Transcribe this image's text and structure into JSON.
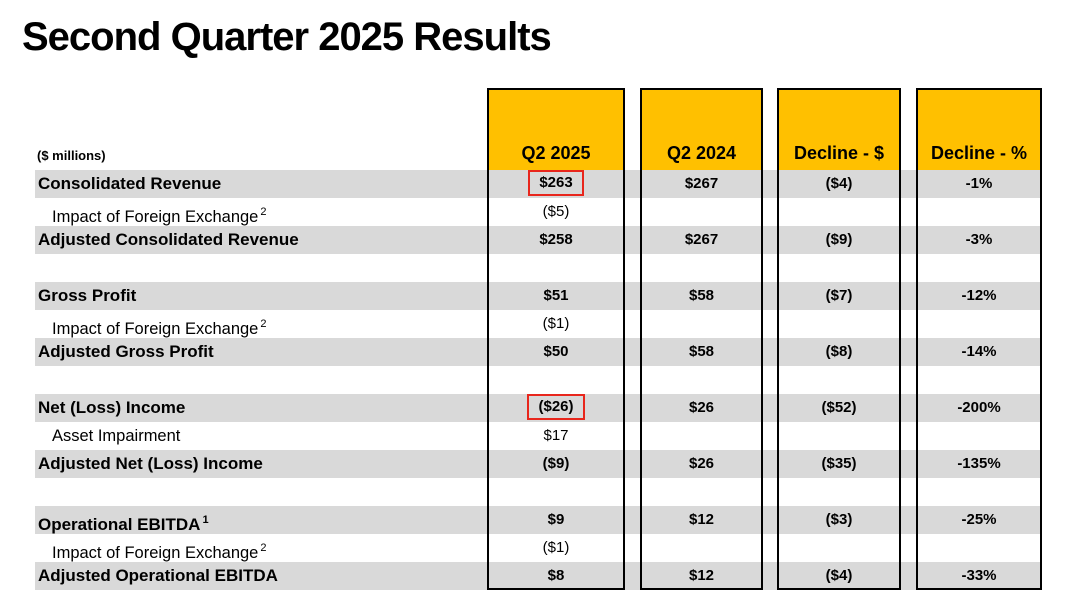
{
  "title": "Second Quarter 2025 Results",
  "table": {
    "unit_label": "($ millions)",
    "columns": [
      "Q2 2025",
      "Q2 2024",
      "Decline - $",
      "Decline - %"
    ],
    "colors": {
      "header_fill": "#FFC000",
      "row_shade": "#D9D9D9",
      "border": "#000000",
      "highlight_border": "#E8261C"
    },
    "rows": [
      {
        "label": "Consolidated Revenue",
        "style": "bold-shaded",
        "values": [
          "$263",
          "$267",
          "($4)",
          "-1%"
        ],
        "highlight_col": 0
      },
      {
        "label": "Impact of Foreign Exchange",
        "sup": "2",
        "style": "indent",
        "values": [
          "($5)",
          "",
          "",
          ""
        ]
      },
      {
        "label": "Adjusted Consolidated Revenue",
        "style": "bold-shaded",
        "values": [
          "$258",
          "$267",
          "($9)",
          "-3%"
        ]
      },
      {
        "label": "",
        "style": "blank",
        "values": [
          "",
          "",
          "",
          ""
        ]
      },
      {
        "label": "Gross Profit",
        "style": "bold-shaded",
        "values": [
          "$51",
          "$58",
          "($7)",
          "-12%"
        ]
      },
      {
        "label": "Impact of Foreign Exchange",
        "sup": "2",
        "style": "indent",
        "values": [
          "($1)",
          "",
          "",
          ""
        ]
      },
      {
        "label": "Adjusted Gross Profit",
        "style": "bold-shaded",
        "values": [
          "$50",
          "$58",
          "($8)",
          "-14%"
        ]
      },
      {
        "label": "",
        "style": "blank",
        "values": [
          "",
          "",
          "",
          ""
        ]
      },
      {
        "label": "Net (Loss) Income",
        "style": "bold-shaded",
        "values": [
          "($26)",
          "$26",
          "($52)",
          "-200%"
        ],
        "highlight_col": 0
      },
      {
        "label": "Asset Impairment",
        "style": "indent",
        "values": [
          "$17",
          "",
          "",
          ""
        ]
      },
      {
        "label": "Adjusted Net (Loss) Income",
        "style": "bold-shaded",
        "values": [
          "($9)",
          "$26",
          "($35)",
          "-135%"
        ]
      },
      {
        "label": "",
        "style": "blank",
        "values": [
          "",
          "",
          "",
          ""
        ]
      },
      {
        "label": "Operational EBITDA",
        "sup": "1",
        "style": "bold-shaded",
        "values": [
          "$9",
          "$12",
          "($3)",
          "-25%"
        ]
      },
      {
        "label": "Impact of Foreign Exchange",
        "sup": "2",
        "style": "indent",
        "values": [
          "($1)",
          "",
          "",
          ""
        ]
      },
      {
        "label": "Adjusted Operational EBITDA",
        "style": "bold-shaded",
        "values": [
          "$8",
          "$12",
          "($4)",
          "-33%"
        ]
      }
    ]
  }
}
